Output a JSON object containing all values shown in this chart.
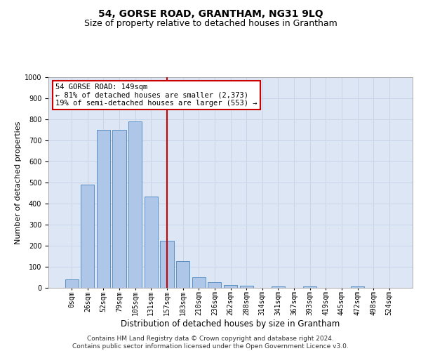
{
  "title": "54, GORSE ROAD, GRANTHAM, NG31 9LQ",
  "subtitle": "Size of property relative to detached houses in Grantham",
  "xlabel": "Distribution of detached houses by size in Grantham",
  "ylabel": "Number of detached properties",
  "categories": [
    "0sqm",
    "26sqm",
    "52sqm",
    "79sqm",
    "105sqm",
    "131sqm",
    "157sqm",
    "183sqm",
    "210sqm",
    "236sqm",
    "262sqm",
    "288sqm",
    "314sqm",
    "341sqm",
    "367sqm",
    "393sqm",
    "419sqm",
    "445sqm",
    "472sqm",
    "498sqm",
    "524sqm"
  ],
  "bar_heights": [
    40,
    490,
    750,
    750,
    790,
    435,
    222,
    128,
    50,
    27,
    15,
    10,
    0,
    8,
    0,
    8,
    0,
    0,
    8,
    0,
    0
  ],
  "bar_color": "#aec6e8",
  "bar_edge_color": "#5a8fc2",
  "vline_color": "#cc0000",
  "annotation_text": "54 GORSE ROAD: 149sqm\n← 81% of detached houses are smaller (2,373)\n19% of semi-detached houses are larger (553) →",
  "annotation_box_color": "#ffffff",
  "annotation_box_edge_color": "#cc0000",
  "ylim": [
    0,
    1000
  ],
  "yticks": [
    0,
    100,
    200,
    300,
    400,
    500,
    600,
    700,
    800,
    900,
    1000
  ],
  "grid_color": "#c8d4e8",
  "bg_color": "#dce6f5",
  "title_fontsize": 10,
  "subtitle_fontsize": 9,
  "xlabel_fontsize": 8.5,
  "ylabel_fontsize": 8,
  "tick_fontsize": 7,
  "annot_fontsize": 7.5,
  "footer_fontsize": 6.5,
  "footer": "Contains HM Land Registry data © Crown copyright and database right 2024.\nContains public sector information licensed under the Open Government Licence v3.0."
}
